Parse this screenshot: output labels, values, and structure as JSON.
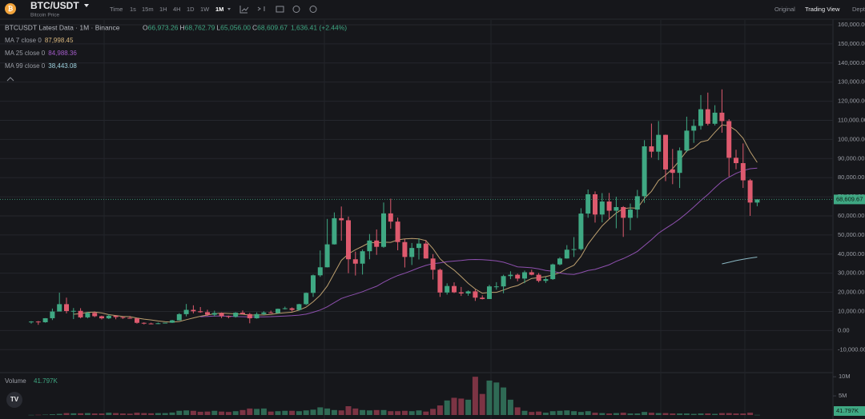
{
  "header": {
    "symbol": "BTC/USDT",
    "subtitle": "Bitcoin Price",
    "intervals": [
      "Time",
      "1s",
      "15m",
      "1H",
      "4H",
      "1D",
      "1W",
      "1M"
    ],
    "active_interval_index": 7,
    "views": [
      "Original",
      "Trading View",
      "Depth"
    ],
    "active_view_index": 1
  },
  "chart_data": {
    "type": "candlestick",
    "title": "BTCUSDT Latest Data · 1M · Binance",
    "ohlc_labels": [
      {
        "key": "O",
        "value": "66,973.26"
      },
      {
        "key": "H",
        "value": "68,762.79"
      },
      {
        "key": "L",
        "value": "65,056.00"
      },
      {
        "key": "C",
        "value": "68,609.67"
      }
    ],
    "change_label": "1,636.41 (+2.44%)",
    "ma": [
      {
        "name": "MA 7 close 0",
        "period": 7,
        "value_label": "87,998.45",
        "color": "#d9b77e"
      },
      {
        "name": "MA 25 close 0",
        "period": 25,
        "value_label": "84,988.36",
        "color": "#a35bc9"
      },
      {
        "name": "MA 99 close 0",
        "period": 99,
        "value_label": "38,443.08",
        "color": "#9fd3e0"
      }
    ],
    "up_color": "#3fa883",
    "down_color": "#de5a6e",
    "open": [
      4300,
      4700,
      4340,
      6450,
      9950,
      13800,
      10200,
      10300,
      6900,
      9240,
      7490,
      6390,
      7730,
      7030,
      6630,
      6370,
      4040,
      3690,
      3440,
      3810,
      4100,
      5320,
      8570,
      10820,
      10080,
      9600,
      8290,
      9200,
      7540,
      7190,
      9350,
      8600,
      6410,
      8620,
      9450,
      9140,
      11350,
      11650,
      10780,
      13800,
      19700,
      28900,
      33100,
      45100,
      58800,
      57700,
      37300,
      35000,
      41500,
      47100,
      43800,
      61300,
      57000,
      46300,
      38500,
      43200,
      45500,
      37700,
      31800,
      19900,
      23300,
      20000,
      19400,
      20500,
      17200,
      16500,
      23100,
      23100,
      28500,
      29200,
      27200,
      30500,
      29200,
      26000,
      26900,
      34600,
      37700,
      42300,
      42600,
      61200,
      71300,
      60700,
      67500,
      62700,
      64600,
      59000,
      63300,
      70300,
      96400,
      93600,
      102400,
      84300,
      82500,
      94200,
      104600,
      107100,
      115800,
      108200,
      114000,
      109600,
      90400,
      87600,
      78600,
      66973.26
    ],
    "high": [
      4900,
      5000,
      6500,
      11500,
      19800,
      17200,
      11800,
      11700,
      9800,
      10000,
      7800,
      8500,
      7800,
      7400,
      7600,
      6600,
      4300,
      4100,
      4200,
      4100,
      5600,
      9100,
      13900,
      13200,
      12300,
      10900,
      10400,
      9500,
      7800,
      9600,
      10500,
      9200,
      9500,
      10100,
      10400,
      11500,
      12500,
      12100,
      14000,
      19900,
      29300,
      41900,
      58400,
      61800,
      64900,
      59600,
      41300,
      42400,
      50500,
      52900,
      67000,
      69000,
      59100,
      47900,
      45800,
      48200,
      47400,
      40000,
      32400,
      24700,
      25200,
      22800,
      21000,
      21500,
      18400,
      23900,
      25300,
      29200,
      31000,
      29800,
      31400,
      31800,
      30100,
      28000,
      35000,
      38400,
      44700,
      48900,
      64000,
      73800,
      72800,
      71900,
      72000,
      70000,
      65100,
      66500,
      73600,
      99600,
      108300,
      109600,
      102500,
      95000,
      95800,
      111900,
      110500,
      123200,
      124500,
      117900,
      126200,
      110600,
      94600,
      97900,
      79300,
      68762.79
    ],
    "low": [
      3600,
      3000,
      4100,
      5500,
      10800,
      9000,
      6000,
      6400,
      6400,
      7000,
      5800,
      6000,
      5900,
      6100,
      6200,
      3600,
      3200,
      3300,
      3400,
      3700,
      4000,
      5300,
      7400,
      9000,
      9300,
      7700,
      7300,
      6500,
      6400,
      6800,
      8400,
      3800,
      6200,
      8100,
      8900,
      9000,
      11000,
      10000,
      10400,
      13300,
      17600,
      28100,
      33000,
      45000,
      47000,
      30000,
      28800,
      29300,
      37300,
      39600,
      43300,
      53300,
      42000,
      33000,
      34300,
      37200,
      37600,
      26700,
      17600,
      18800,
      19600,
      18100,
      18200,
      15500,
      16300,
      16500,
      21400,
      19500,
      26900,
      25800,
      24800,
      28900,
      25200,
      24900,
      26500,
      34100,
      37600,
      38500,
      41900,
      59000,
      56500,
      56600,
      58400,
      53500,
      49000,
      52500,
      58900,
      66800,
      90500,
      89200,
      78200,
      76600,
      74600,
      93300,
      98200,
      105100,
      107300,
      107300,
      103500,
      80600,
      84400,
      74600,
      60000,
      65056
    ],
    "close": [
      4700,
      4340,
      6450,
      9950,
      13800,
      10200,
      10300,
      6900,
      9240,
      7490,
      6390,
      7730,
      7030,
      6630,
      6370,
      4040,
      3690,
      3440,
      3810,
      4100,
      5320,
      8570,
      10820,
      10080,
      9600,
      8290,
      9200,
      7540,
      7190,
      9350,
      8600,
      6410,
      8620,
      9450,
      9140,
      11350,
      11650,
      10780,
      13800,
      19700,
      28900,
      33100,
      45100,
      58800,
      57700,
      37300,
      35000,
      41500,
      47100,
      43800,
      61300,
      57000,
      46300,
      38500,
      43200,
      45500,
      37700,
      31800,
      19900,
      23300,
      20000,
      19400,
      20500,
      17200,
      16500,
      23100,
      23100,
      28500,
      29200,
      27200,
      30500,
      29200,
      26000,
      26900,
      34600,
      37700,
      42300,
      42600,
      61200,
      71300,
      60700,
      67500,
      62700,
      64600,
      59000,
      63300,
      70300,
      96400,
      93600,
      102400,
      84300,
      82500,
      94200,
      104600,
      107100,
      115800,
      108200,
      114000,
      109600,
      90400,
      87600,
      78600,
      66973.26,
      68609.67
    ],
    "last_price_label": "68,609.67",
    "ylim": [
      -21600,
      162500
    ],
    "yticks": [
      {
        "value": -10000,
        "label": "-10,000.00"
      },
      {
        "value": 0,
        "label": "0.00"
      },
      {
        "value": 10000,
        "label": "10,000.00"
      },
      {
        "value": 20000,
        "label": "20,000.00"
      },
      {
        "value": 30000,
        "label": "30,000.00"
      },
      {
        "value": 40000,
        "label": "40,000.00"
      },
      {
        "value": 50000,
        "label": "50,000.00"
      },
      {
        "value": 60000,
        "label": "60,000.00"
      },
      {
        "value": 70000,
        "label": "70,000.00"
      },
      {
        "value": 80000,
        "label": "80,000.00"
      },
      {
        "value": 90000,
        "label": "90,000.00"
      },
      {
        "value": 100000,
        "label": "100,000.00"
      },
      {
        "value": 110000,
        "label": "110,000.00"
      },
      {
        "value": 120000,
        "label": "120,000.00"
      },
      {
        "value": 130000,
        "label": "130,000.00"
      },
      {
        "value": 140000,
        "label": "140,000.00"
      },
      {
        "value": 150000,
        "label": "150,000.00"
      },
      {
        "value": 160000,
        "label": "160,000.00"
      }
    ],
    "grid": true,
    "volume": {
      "name": "Volume",
      "value_label": "41.797K",
      "values": [
        40000,
        60000,
        100000,
        200000,
        300000,
        500000,
        450000,
        450000,
        500000,
        400000,
        400000,
        600000,
        500000,
        400000,
        350000,
        600000,
        500000,
        450000,
        500000,
        500000,
        650000,
        1100000,
        1200000,
        1100000,
        850000,
        900000,
        1100000,
        900000,
        800000,
        1000000,
        1300000,
        1700000,
        1600000,
        1700000,
        900000,
        1000000,
        1100000,
        1100000,
        1000000,
        1200000,
        1400000,
        2000000,
        1700000,
        1300000,
        1200000,
        2300000,
        1700000,
        1300000,
        1200000,
        1300000,
        1300000,
        1000000,
        1000000,
        1100000,
        1000000,
        1200000,
        900000,
        1600000,
        2500000,
        3800000,
        4500000,
        4300000,
        4000000,
        10000000,
        5500000,
        9000000,
        8500000,
        7200000,
        4000000,
        2000000,
        1100000,
        800000,
        900000,
        600000,
        1000000,
        1100000,
        1200000,
        1000000,
        800000,
        1000000,
        600000,
        500000,
        400000,
        500000,
        600000,
        400000,
        400000,
        800000,
        600000,
        500000,
        500000,
        400000,
        400000,
        400000,
        300000,
        400000,
        400000,
        300000,
        500000,
        500000,
        400000,
        400000,
        600000,
        41797
      ],
      "ylim": [
        0,
        10870000
      ],
      "yticks": [
        {
          "value": 5000000,
          "label": "5M"
        },
        {
          "value": 10000000,
          "label": "10M"
        }
      ]
    }
  }
}
